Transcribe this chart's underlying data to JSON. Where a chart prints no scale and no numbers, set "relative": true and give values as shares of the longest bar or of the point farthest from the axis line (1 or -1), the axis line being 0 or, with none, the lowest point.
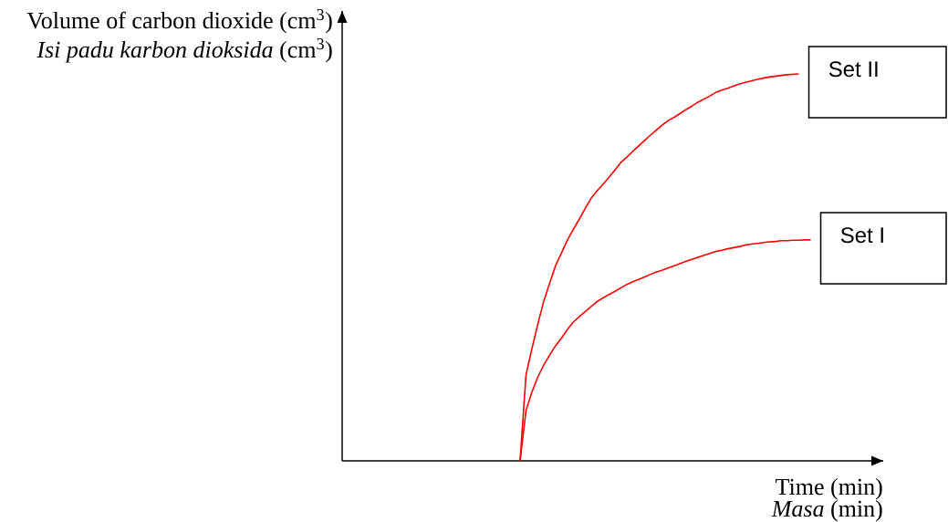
{
  "chart_data": {
    "type": "line",
    "relative": true,
    "legend": false,
    "line_style": "solid",
    "ylabel": "Volume of carbon dioxide (cm$^{3}$)",
    "xlabel": "Time (min)",
    "annotations": [
      "*Isi padu karbon dioksida* (cm$^{3}$)",
      "*Masa* (min)"
    ],
    "categories": [
      null,
      null,
      null,
      null,
      null,
      null,
      null,
      null,
      null,
      null,
      null,
      null,
      null,
      null,
      null,
      null,
      null,
      null,
      null,
      null,
      null,
      null,
      null,
      null,
      null,
      null,
      null,
      null,
      null,
      null,
      null,
      null,
      null,
      null,
      null,
      null,
      null,
      null,
      null,
      null,
      null,
      null,
      null,
      null,
      null,
      null,
      null,
      null,
      null,
      null,
      null,
      null,
      null,
      null,
      null,
      null,
      null,
      null,
      null,
      null,
      null,
      null,
      null,
      null,
      null,
      null,
      null,
      null,
      null,
      null,
      null,
      null,
      null,
      null,
      null,
      null,
      null,
      null,
      null,
      null
    ],
    "series": [
      {
        "name": "Set II",
        "color": "#ff0000",
        "values": [
          null,
          null,
          null,
          null,
          null,
          null,
          null,
          null,
          null,
          null,
          null,
          null,
          null,
          null,
          null,
          null,
          null,
          null,
          null,
          null,
          null,
          null,
          null,
          null,
          null,
          null,
          null,
          null,
          null,
          null,
          0,
          0.222,
          0.29,
          0.354,
          0.413,
          0.46,
          0.505,
          0.538,
          0.571,
          0.599,
          0.625,
          0.653,
          0.679,
          0.698,
          0.715,
          0.733,
          0.752,
          0.771,
          0.785,
          0.8,
          0.814,
          0.828,
          0.842,
          0.855,
          0.868,
          0.88,
          0.888,
          0.898,
          0.908,
          0.917,
          0.927,
          0.935,
          0.943,
          0.952,
          0.958,
          0.963,
          0.969,
          0.974,
          0.978,
          0.982,
          0.986,
          0.989,
          0.992,
          0.994,
          0.996,
          0.998,
          0.999,
          1,
          null,
          null
        ]
      },
      {
        "name": "Set I",
        "color": "#ff0000",
        "values": [
          null,
          null,
          null,
          null,
          null,
          null,
          null,
          null,
          null,
          null,
          null,
          null,
          null,
          null,
          null,
          null,
          null,
          null,
          null,
          null,
          null,
          null,
          null,
          null,
          null,
          null,
          null,
          null,
          null,
          null,
          0,
          0.13,
          0.178,
          0.217,
          0.248,
          0.274,
          0.298,
          0.318,
          0.34,
          0.359,
          0.373,
          0.386,
          0.399,
          0.412,
          0.421,
          0.43,
          0.438,
          0.447,
          0.456,
          0.463,
          0.469,
          0.475,
          0.482,
          0.488,
          0.493,
          0.499,
          0.504,
          0.51,
          0.516,
          0.521,
          0.526,
          0.531,
          0.536,
          0.541,
          0.544,
          0.548,
          0.551,
          0.554,
          0.558,
          0.56,
          0.562,
          0.564,
          0.566,
          0.567,
          0.569,
          0.569,
          0.57,
          0.57,
          0.571,
          0.571
        ]
      }
    ]
  }
}
